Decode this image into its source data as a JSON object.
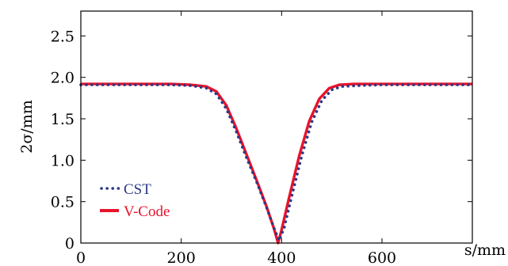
{
  "chart_data": {
    "type": "line",
    "title": "",
    "xlabel": "s/mm",
    "ylabel": "2σ/mm",
    "xlim": [
      0,
      780
    ],
    "ylim": [
      0,
      2.8
    ],
    "xticks": [
      0,
      200,
      400,
      600
    ],
    "xtick_labels": [
      "0",
      "200",
      "400",
      "600"
    ],
    "yticks": [
      0,
      0.5,
      1.0,
      1.5,
      2.0,
      2.5
    ],
    "ytick_labels": [
      "0",
      "0.5",
      "1.0",
      "1.5",
      "2.0",
      "2.5"
    ],
    "grid": false,
    "legend_position": "bottom-left",
    "series": [
      {
        "name": "CST",
        "style": "dotted",
        "color": "#2b3a86",
        "x": [
          0,
          60,
          120,
          180,
          220,
          250,
          270,
          290,
          310,
          330,
          350,
          370,
          385,
          395,
          405,
          420,
          440,
          460,
          480,
          500,
          520,
          550,
          600,
          660,
          720,
          780
        ],
        "y": [
          1.91,
          1.91,
          1.91,
          1.91,
          1.9,
          1.87,
          1.8,
          1.62,
          1.34,
          1.03,
          0.74,
          0.43,
          0.18,
          0.03,
          0.18,
          0.56,
          1.05,
          1.46,
          1.72,
          1.85,
          1.89,
          1.9,
          1.91,
          1.91,
          1.91,
          1.91
        ]
      },
      {
        "name": "V-Code",
        "style": "solid",
        "color": "#e8132b",
        "x": [
          0,
          60,
          120,
          180,
          220,
          250,
          270,
          290,
          310,
          330,
          350,
          370,
          385,
          393,
          400,
          415,
          435,
          455,
          475,
          495,
          515,
          545,
          600,
          660,
          720,
          780
        ],
        "y": [
          1.92,
          1.92,
          1.92,
          1.92,
          1.91,
          1.89,
          1.83,
          1.66,
          1.38,
          1.07,
          0.76,
          0.44,
          0.17,
          0.0,
          0.16,
          0.55,
          1.05,
          1.47,
          1.74,
          1.87,
          1.91,
          1.92,
          1.92,
          1.92,
          1.92,
          1.92
        ]
      }
    ]
  }
}
